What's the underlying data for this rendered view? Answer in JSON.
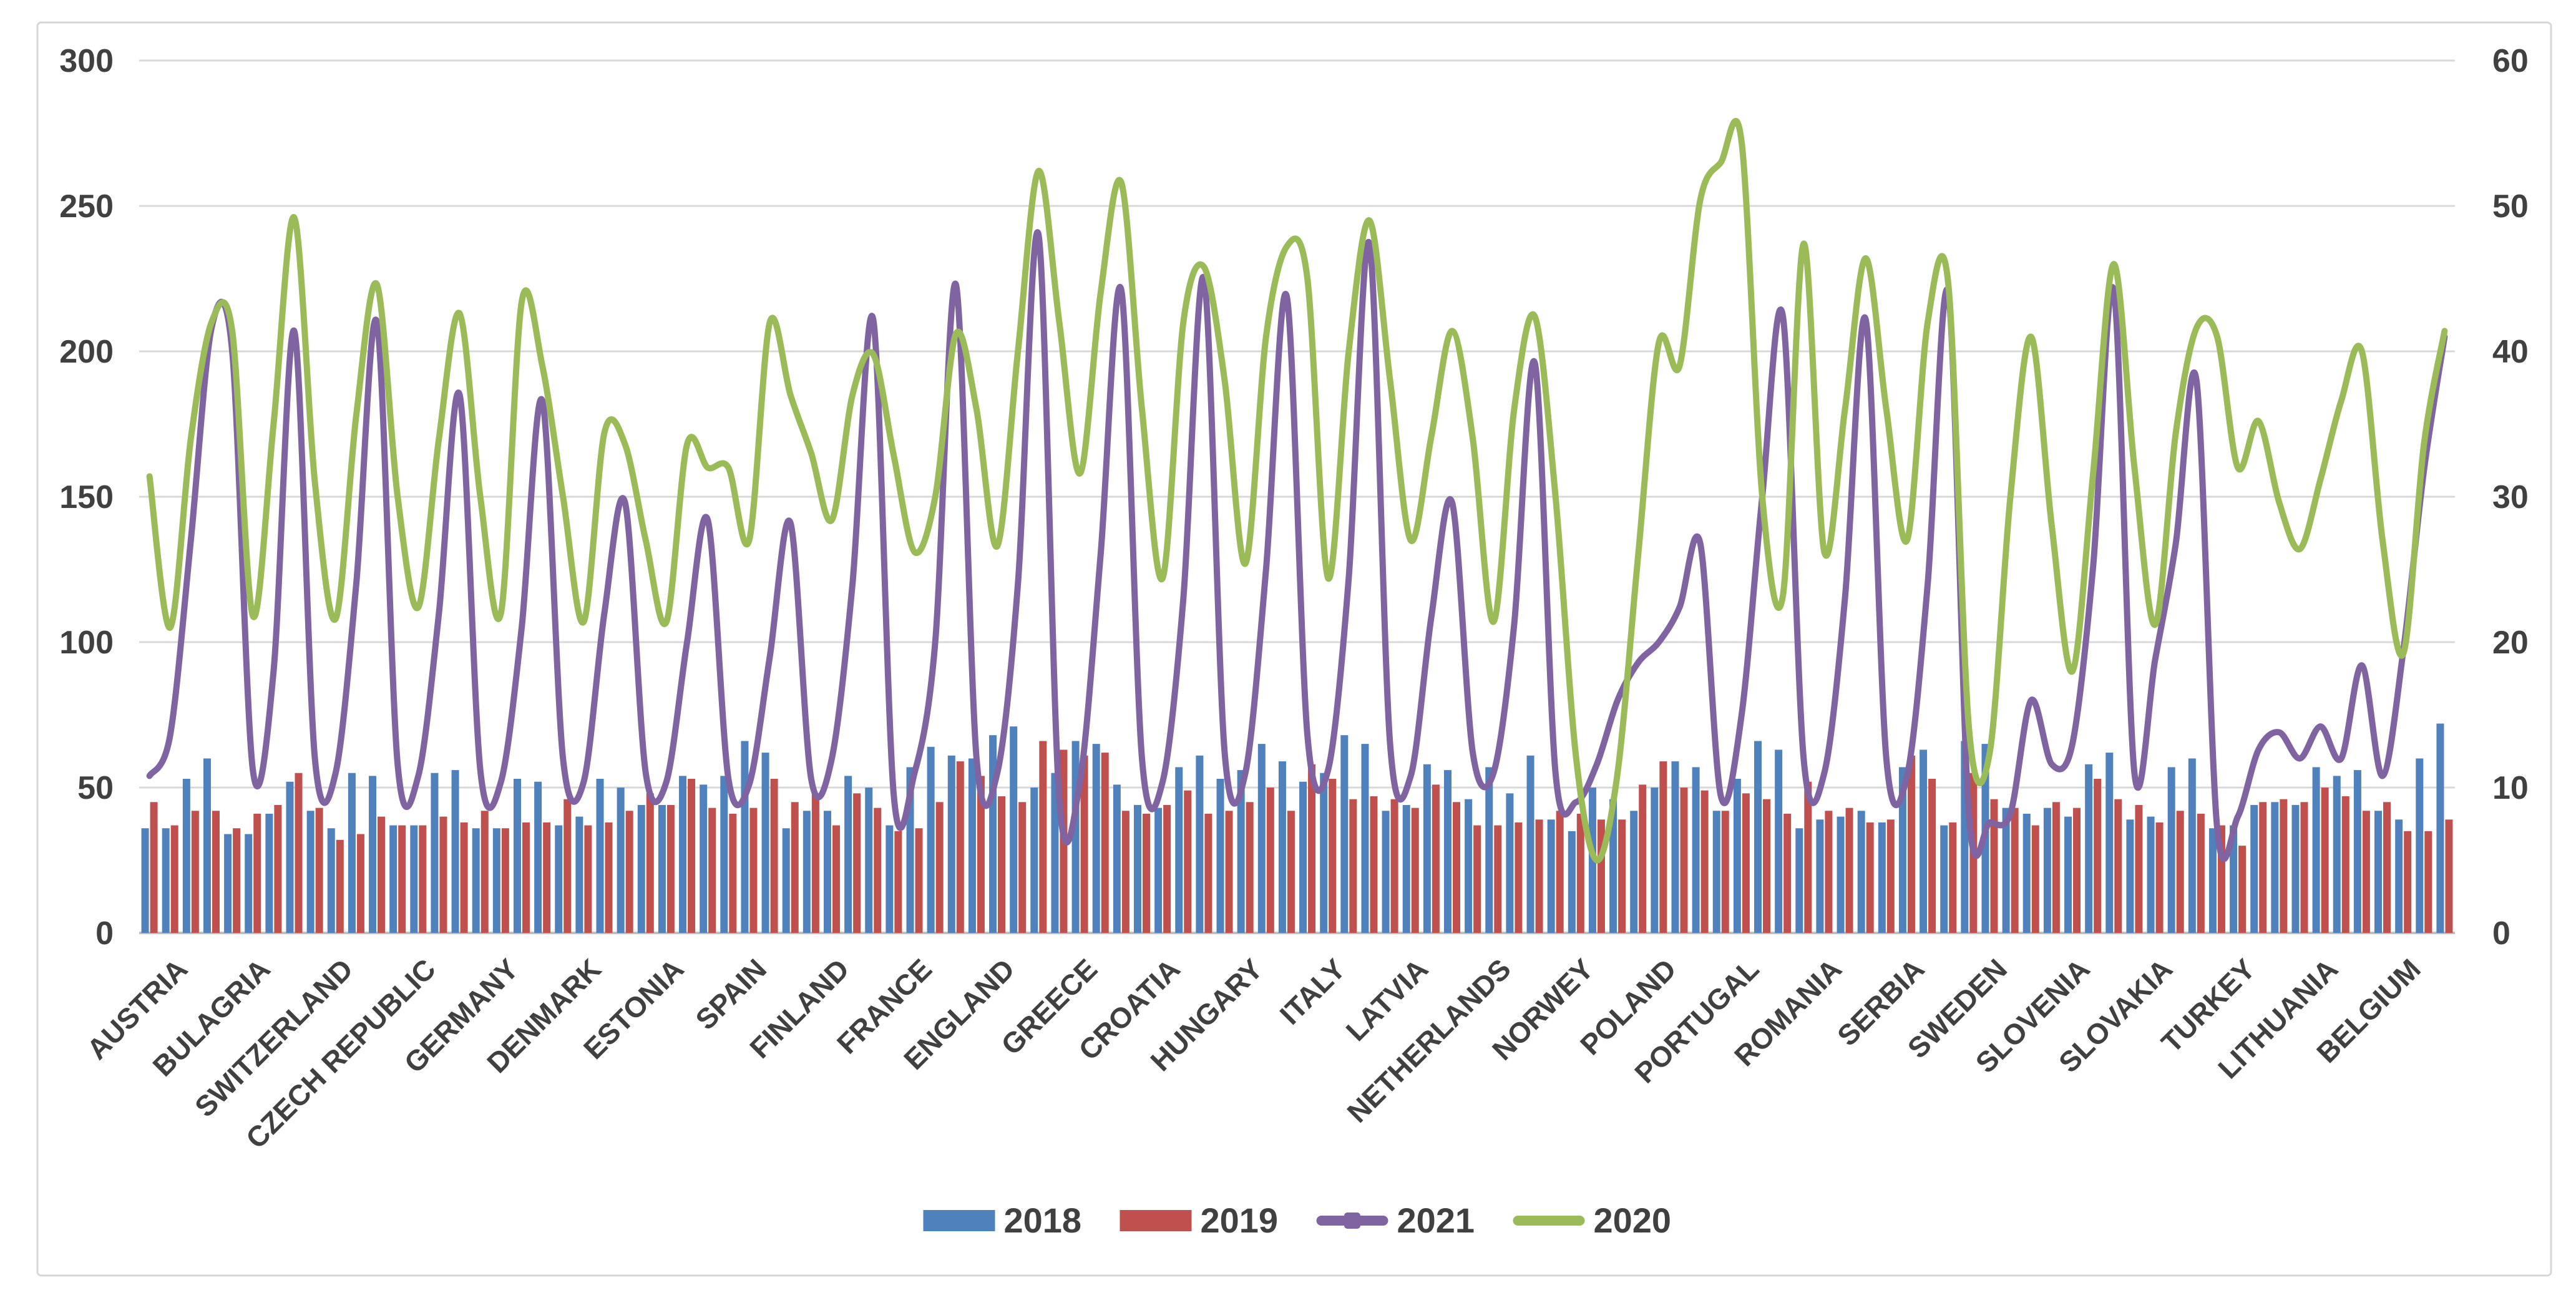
{
  "chart_data": {
    "type": "combo-bar-line",
    "points_per_category": 4,
    "left_axis": {
      "ticks": [
        0,
        50,
        100,
        150,
        200,
        250,
        300
      ],
      "min": 0,
      "max": 300
    },
    "right_axis": {
      "ticks": [
        0,
        10,
        20,
        30,
        40,
        50,
        60
      ],
      "min": 0,
      "max": 60
    },
    "grid": true,
    "legend_position": "bottom-center",
    "categories": [
      "AUSTRIA",
      "BULAGRIA",
      "SWITZERLAND",
      "CZECH REPUBLIC",
      "GERMANY",
      "DENMARK",
      "ESTONIA",
      "SPAIN",
      "FINLAND",
      "FRANCE",
      "ENGLAND",
      "GREECE",
      "CROATIA",
      "HUNGARY",
      "ITALY",
      "LATVIA",
      "NETHERLANDS",
      "NORWEY",
      "POLAND",
      "PORTUGAL",
      "ROMANIA",
      "SERBIA",
      "SWEDEN",
      "SLOVENIA",
      "SLOVAKIA",
      "TURKEY",
      "LITHUANIA",
      "BELGIUM"
    ],
    "bar_series": [
      {
        "name": "2018",
        "color": "#4F81BD",
        "values": [
          [
            36,
            36,
            53,
            60
          ],
          [
            34,
            34,
            41,
            52
          ],
          [
            42,
            36,
            55,
            54
          ],
          [
            37,
            37,
            55,
            56
          ],
          [
            36,
            36,
            53,
            52
          ],
          [
            37,
            40,
            53,
            50
          ],
          [
            44,
            44,
            54,
            51
          ],
          [
            54,
            66,
            62,
            36
          ],
          [
            42,
            42,
            54,
            50
          ],
          [
            37,
            57,
            64,
            61
          ],
          [
            60,
            68,
            71,
            50
          ],
          [
            55,
            66,
            65,
            51
          ],
          [
            44,
            43,
            57,
            61
          ],
          [
            53,
            56,
            65,
            59
          ],
          [
            52,
            55,
            68,
            65
          ],
          [
            42,
            44,
            58,
            56
          ],
          [
            46,
            57,
            48,
            61
          ],
          [
            39,
            35,
            50,
            46
          ],
          [
            42,
            50,
            59,
            57
          ],
          [
            42,
            53,
            66,
            63
          ],
          [
            36,
            39,
            40,
            42
          ],
          [
            38,
            57,
            63,
            37
          ],
          [
            66,
            65,
            43,
            41
          ],
          [
            43,
            40,
            58,
            62
          ],
          [
            39,
            40,
            57,
            60
          ],
          [
            36,
            37,
            44,
            45
          ],
          [
            44,
            57,
            54,
            56
          ],
          [
            42,
            39,
            60,
            72
          ]
        ]
      },
      {
        "name": "2019",
        "color": "#C0504D",
        "values": [
          [
            45,
            37,
            42,
            42
          ],
          [
            36,
            41,
            44,
            55
          ],
          [
            43,
            32,
            34,
            40
          ],
          [
            37,
            37,
            40,
            38
          ],
          [
            42,
            36,
            38,
            38
          ],
          [
            46,
            37,
            38,
            42
          ],
          [
            48,
            44,
            53,
            43
          ],
          [
            41,
            43,
            53,
            45
          ],
          [
            48,
            37,
            48,
            43
          ],
          [
            35,
            36,
            45,
            59
          ],
          [
            54,
            47,
            45,
            66
          ],
          [
            63,
            61,
            62,
            42
          ],
          [
            41,
            44,
            49,
            41
          ],
          [
            42,
            45,
            50,
            42
          ],
          [
            58,
            53,
            46,
            47
          ],
          [
            46,
            43,
            51,
            45
          ],
          [
            37,
            37,
            38,
            39
          ],
          [
            42,
            41,
            39,
            39
          ],
          [
            51,
            59,
            50,
            49
          ],
          [
            42,
            48,
            46,
            41
          ],
          [
            52,
            42,
            43,
            38
          ],
          [
            39,
            61,
            53,
            38
          ],
          [
            55,
            46,
            43,
            37
          ],
          [
            45,
            43,
            53,
            46
          ],
          [
            44,
            38,
            42,
            41
          ],
          [
            37,
            30,
            45,
            46
          ],
          [
            45,
            50,
            47,
            42
          ],
          [
            45,
            35,
            35,
            39
          ]
        ]
      }
    ],
    "line_series": [
      {
        "name": "2021",
        "color": "#8064A2",
        "marker": true,
        "values": [
          [
            54,
            68,
            135,
            208
          ],
          [
            200,
            56,
            90,
            207
          ],
          [
            60,
            55,
            120,
            210
          ],
          [
            58,
            54,
            110,
            185
          ],
          [
            56,
            52,
            105,
            183
          ],
          [
            60,
            52,
            110,
            148
          ],
          [
            55,
            52,
            100,
            142
          ],
          [
            53,
            51,
            95,
            141
          ],
          [
            53,
            60,
            120,
            211
          ],
          [
            47,
            55,
            100,
            223
          ],
          [
            60,
            55,
            120,
            240
          ],
          [
            46,
            52,
            130,
            221
          ],
          [
            60,
            52,
            115,
            225
          ],
          [
            62,
            55,
            125,
            219
          ],
          [
            68,
            56,
            122,
            237
          ],
          [
            65,
            54,
            109,
            148
          ],
          [
            62,
            55,
            106,
            196
          ],
          [
            55,
            45,
            58,
            80
          ],
          [
            93,
            100,
            112,
            134
          ],
          [
            47,
            75,
            150,
            212
          ],
          [
            60,
            55,
            115,
            211
          ],
          [
            60,
            54,
            120,
            220
          ],
          [
            40,
            38,
            41,
            80
          ],
          [
            58,
            65,
            126,
            221
          ],
          [
            55,
            94,
            134,
            190
          ],
          [
            36,
            40,
            63,
            69
          ],
          [
            60,
            71,
            60,
            92
          ],
          [
            54,
            97,
            159,
            205
          ]
        ]
      },
      {
        "name": "2020",
        "color": "#9BBB59",
        "marker": false,
        "values": [
          [
            157,
            105,
            170,
            210
          ],
          [
            207,
            109,
            175,
            246
          ],
          [
            155,
            108,
            178,
            223
          ],
          [
            150,
            112,
            170,
            213
          ],
          [
            150,
            110,
            217,
            195
          ],
          [
            150,
            107,
            172,
            168
          ],
          [
            135,
            107,
            168,
            160
          ],
          [
            160,
            135,
            210,
            185
          ],
          [
            165,
            142,
            185,
            199
          ],
          [
            164,
            131,
            150,
            206
          ],
          [
            180,
            133,
            200,
            262
          ],
          [
            210,
            158,
            220,
            258
          ],
          [
            180,
            122,
            210,
            229
          ],
          [
            190,
            127,
            205,
            236
          ],
          [
            225,
            122,
            200,
            245
          ],
          [
            190,
            135,
            171,
            207
          ],
          [
            170,
            107,
            180,
            212
          ],
          [
            150,
            60,
            25,
            55
          ],
          [
            130,
            203,
            195,
            252
          ],
          [
            265,
            272,
            150,
            116
          ],
          [
            237,
            131,
            180,
            232
          ],
          [
            180,
            135,
            210,
            223
          ],
          [
            70,
            62,
            150,
            205
          ],
          [
            140,
            90,
            158,
            230
          ],
          [
            160,
            106,
            172,
            208
          ],
          [
            205,
            160,
            176,
            148
          ],
          [
            132,
            156,
            183,
            200
          ],
          [
            135,
            96,
            168,
            207
          ]
        ]
      }
    ],
    "legend": [
      {
        "label": "2018",
        "swatch": "bar",
        "color": "#4F81BD"
      },
      {
        "label": "2019",
        "swatch": "bar",
        "color": "#C0504D"
      },
      {
        "label": "2021",
        "swatch": "line-marker",
        "color": "#8064A2"
      },
      {
        "label": "2020",
        "swatch": "line",
        "color": "#9BBB59"
      }
    ],
    "colors": {
      "grid": "#D9D9D9",
      "baseline": "#BFBFBF",
      "axis_text": "#404040",
      "border": "#D7D7D7",
      "background": "#FFFFFF"
    }
  }
}
